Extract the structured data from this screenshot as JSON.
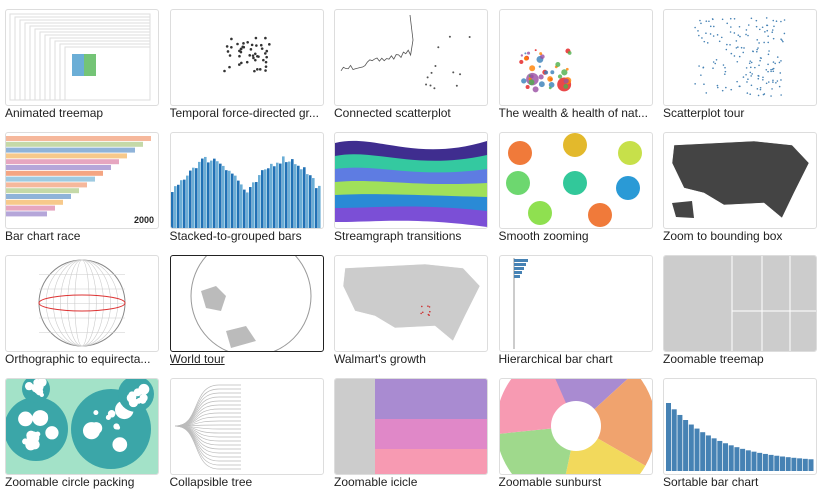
{
  "gallery": {
    "items": [
      {
        "title": "Animated treemap"
      },
      {
        "title": "Temporal force-directed gr..."
      },
      {
        "title": "Connected scatterplot"
      },
      {
        "title": "The wealth & health of nat..."
      },
      {
        "title": "Scatterplot tour"
      },
      {
        "title": "Bar chart race",
        "thumbnail_text": "2000"
      },
      {
        "title": "Stacked-to-grouped bars"
      },
      {
        "title": "Streamgraph transitions"
      },
      {
        "title": "Smooth zooming"
      },
      {
        "title": "Zoom to bounding box"
      },
      {
        "title": "Orthographic to equirecta..."
      },
      {
        "title": "World tour"
      },
      {
        "title": "Walmart's growth"
      },
      {
        "title": "Hierarchical bar chart"
      },
      {
        "title": "Zoomable treemap"
      },
      {
        "title": "Zoomable circle packing"
      },
      {
        "title": "Collapsible tree"
      },
      {
        "title": "Zoomable icicle"
      },
      {
        "title": "Zoomable sunburst"
      },
      {
        "title": "Sortable bar chart"
      }
    ]
  }
}
